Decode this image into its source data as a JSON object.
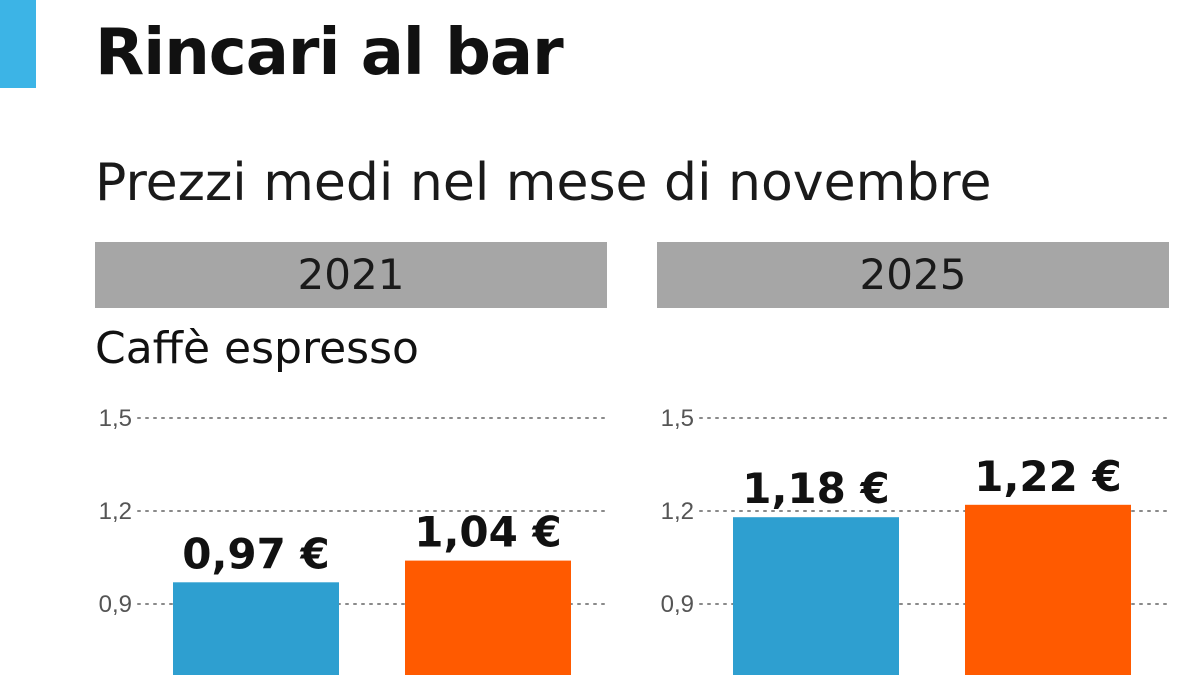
{
  "title": "Rincari al bar",
  "subtitle": "Prezzi medi nel mese di novembre",
  "colors": {
    "accent": "#3cb4e6",
    "series_blue": "#2e9fd0",
    "series_orange": "#ff5a00",
    "band": "#a6a6a6"
  },
  "chart_data": [
    {
      "type": "bar",
      "title": "2021",
      "section_label": "Caffè espresso",
      "y_ticks": [
        "1,5",
        "1,2",
        "0,9"
      ],
      "tick_values": [
        1.5,
        1.2,
        0.9
      ],
      "ylim": [
        0.6,
        1.5
      ],
      "grid": true,
      "values": [
        0.97,
        1.04
      ],
      "value_labels": [
        "0,97 €",
        "1,04 €"
      ],
      "colors": [
        "#2e9fd0",
        "#ff5a00"
      ]
    },
    {
      "type": "bar",
      "title": "2025",
      "y_ticks": [
        "1,5",
        "1,2",
        "0,9"
      ],
      "tick_values": [
        1.5,
        1.2,
        0.9
      ],
      "ylim": [
        0.6,
        1.5
      ],
      "grid": true,
      "values": [
        1.18,
        1.22
      ],
      "value_labels": [
        "1,18 €",
        "1,22 €"
      ],
      "colors": [
        "#2e9fd0",
        "#ff5a00"
      ]
    }
  ]
}
